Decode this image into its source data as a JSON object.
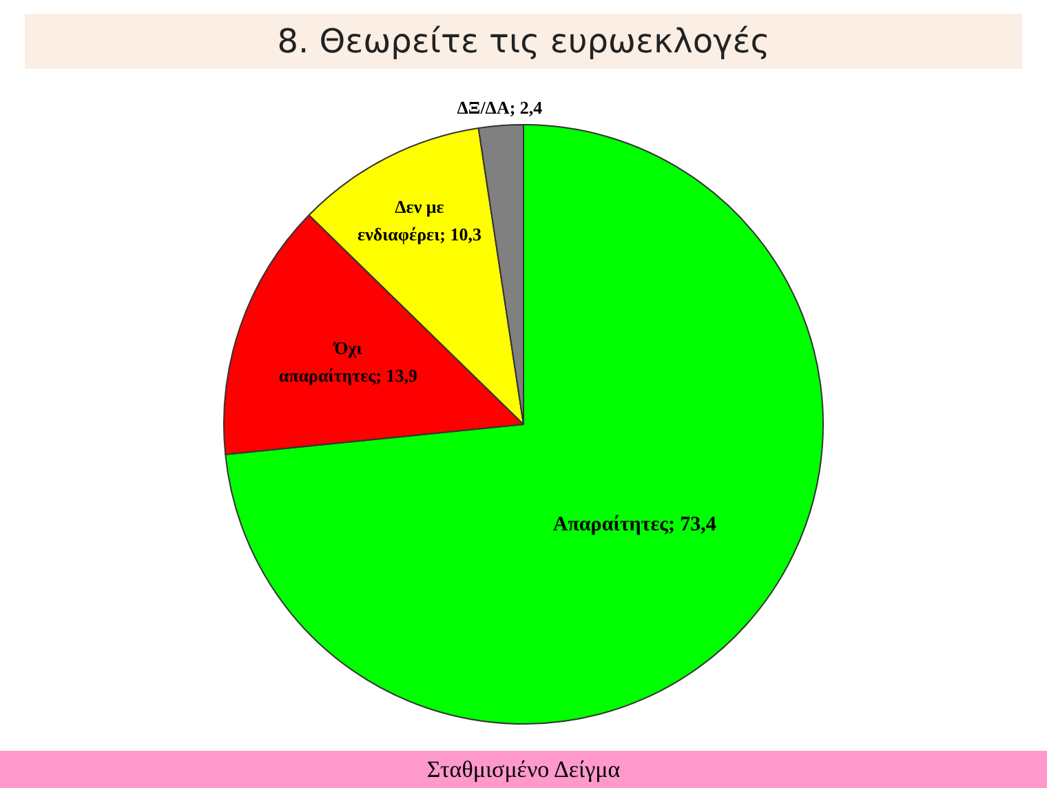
{
  "chart_data": {
    "type": "pie",
    "title": "8. Θεωρείτε τις ευρωεκλογές",
    "categories": [
      "Απαραίτητες",
      "Όχι απαραίτητες",
      "Δεν με ενδιαφέρει",
      "ΔΞ/ΔΑ"
    ],
    "values": [
      73.4,
      13.9,
      10.3,
      2.4
    ],
    "value_labels": [
      "73,4",
      "13,9",
      "10,3",
      "2,4"
    ],
    "colors": [
      "#00ff00",
      "#ff0000",
      "#ffff00",
      "#808080"
    ],
    "legend": false,
    "annotations": [
      "Σταθμισμένο Δείγμα"
    ]
  }
}
